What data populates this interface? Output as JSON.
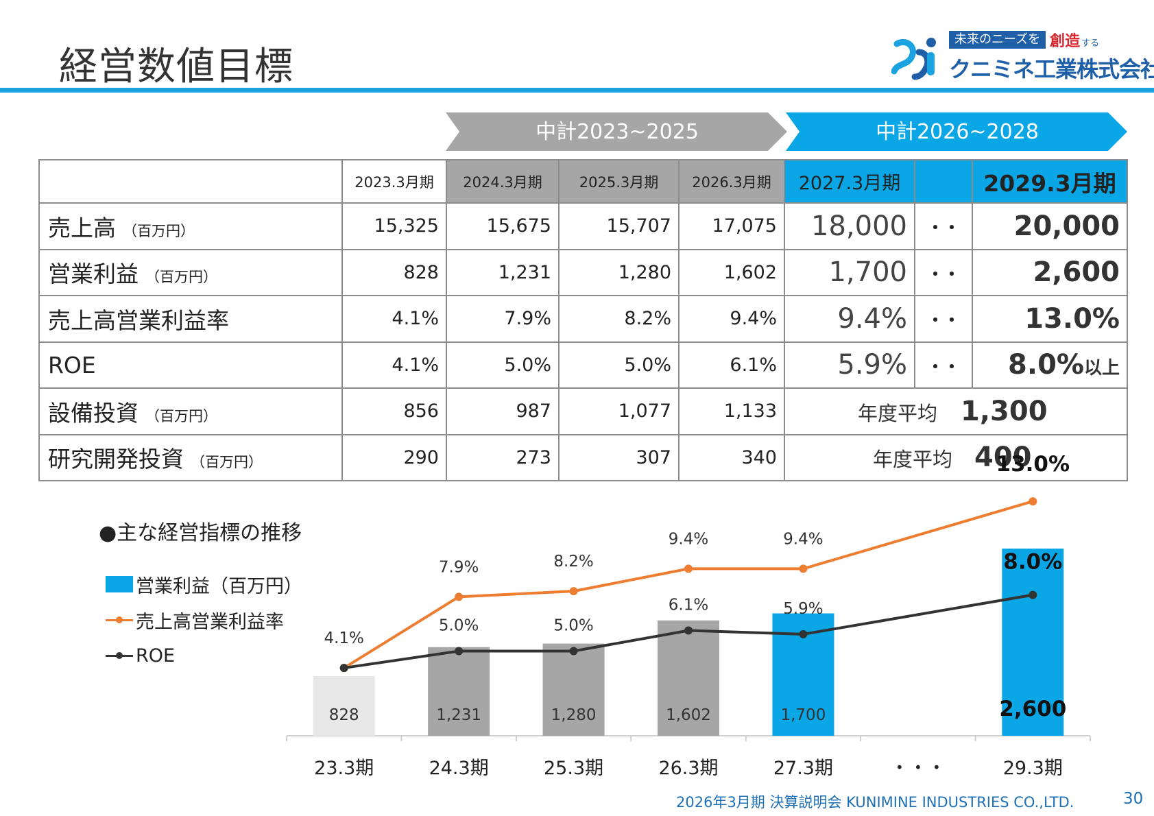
{
  "header": {
    "title": "経営数値目標"
  },
  "logo": {
    "tagline_box": "未来のニーズを",
    "tagline_red": "創造",
    "tagline_small": "する",
    "company": "クニミネ工業株式会社"
  },
  "plans": [
    {
      "label": "中計2023~2025",
      "color": "#a6a6a6"
    },
    {
      "label": "中計2026~2028",
      "color": "#0aa6e6"
    }
  ],
  "table": {
    "headers": [
      "",
      "2023.3月期",
      "2024.3月期",
      "2025.3月期",
      "2026.3月期",
      "2027.3月期",
      "",
      "2029.3月期"
    ],
    "rows": [
      {
        "label": "売上高",
        "unit": "（百万円）",
        "values": [
          "15,325",
          "15,675",
          "15,707",
          "17,075"
        ],
        "plan": "18,000",
        "dots": "・・",
        "target": "20,000",
        "target_suffix": ""
      },
      {
        "label": "営業利益",
        "unit": "（百万円）",
        "values": [
          "828",
          "1,231",
          "1,280",
          "1,602"
        ],
        "plan": "1,700",
        "dots": "・・",
        "target": "2,600",
        "target_suffix": ""
      },
      {
        "label": "売上高営業利益率",
        "unit": "",
        "values": [
          "4.1%",
          "7.9%",
          "8.2%",
          "9.4%"
        ],
        "plan": "9.4%",
        "dots": "・・",
        "target": "13.0%",
        "target_suffix": ""
      },
      {
        "label": "ROE",
        "unit": "",
        "values": [
          "4.1%",
          "5.0%",
          "5.0%",
          "6.1%"
        ],
        "plan": "5.9%",
        "dots": "・・",
        "target": "8.0%",
        "target_suffix": "以上"
      }
    ],
    "avg_rows": [
      {
        "label": "設備投資",
        "unit": "（百万円）",
        "values": [
          "856",
          "987",
          "1,077",
          "1,133"
        ],
        "avg_label": "年度平均",
        "avg_value": "1,300"
      },
      {
        "label": "研究開発投資",
        "unit": "（百万円）",
        "values": [
          "290",
          "273",
          "307",
          "340"
        ],
        "avg_label": "年度平均",
        "avg_value": "400"
      }
    ]
  },
  "chart_data": {
    "type": "bar",
    "title": "●主な経営指標の推移",
    "categories": [
      "23.3期",
      "24.3期",
      "25.3期",
      "26.3期",
      "27.3期",
      "・・・",
      "29.3期"
    ],
    "series": [
      {
        "name": "営業利益（百万円）",
        "type": "bar",
        "values": [
          828,
          1231,
          1280,
          1602,
          1700,
          null,
          2600
        ],
        "labels": [
          "828",
          "1,231",
          "1,280",
          "1,602",
          "1,700",
          "",
          "2,600"
        ],
        "colors": [
          "#e8e8e8",
          "#a6a6a6",
          "#a6a6a6",
          "#a6a6a6",
          "#0aa6e6",
          null,
          "#0aa6e6"
        ]
      },
      {
        "name": "売上高営業利益率",
        "type": "line",
        "color": "#ed7d31",
        "values": [
          4.1,
          7.9,
          8.2,
          9.4,
          9.4,
          null,
          13.0
        ],
        "labels": [
          "4.1%",
          "7.9%",
          "8.2%",
          "9.4%",
          "9.4%",
          "",
          "13.0%"
        ]
      },
      {
        "name": "ROE",
        "type": "line",
        "color": "#333333",
        "values": [
          4.1,
          5.0,
          5.0,
          6.1,
          5.9,
          null,
          8.0
        ],
        "labels": [
          "",
          "5.0%",
          "5.0%",
          "6.1%",
          "5.9%",
          "",
          "8.0%"
        ]
      }
    ]
  },
  "footer": {
    "text": "2026年3月期 決算説明会 KUNIMINE INDUSTRIES CO.,LTD.",
    "page": "30"
  }
}
